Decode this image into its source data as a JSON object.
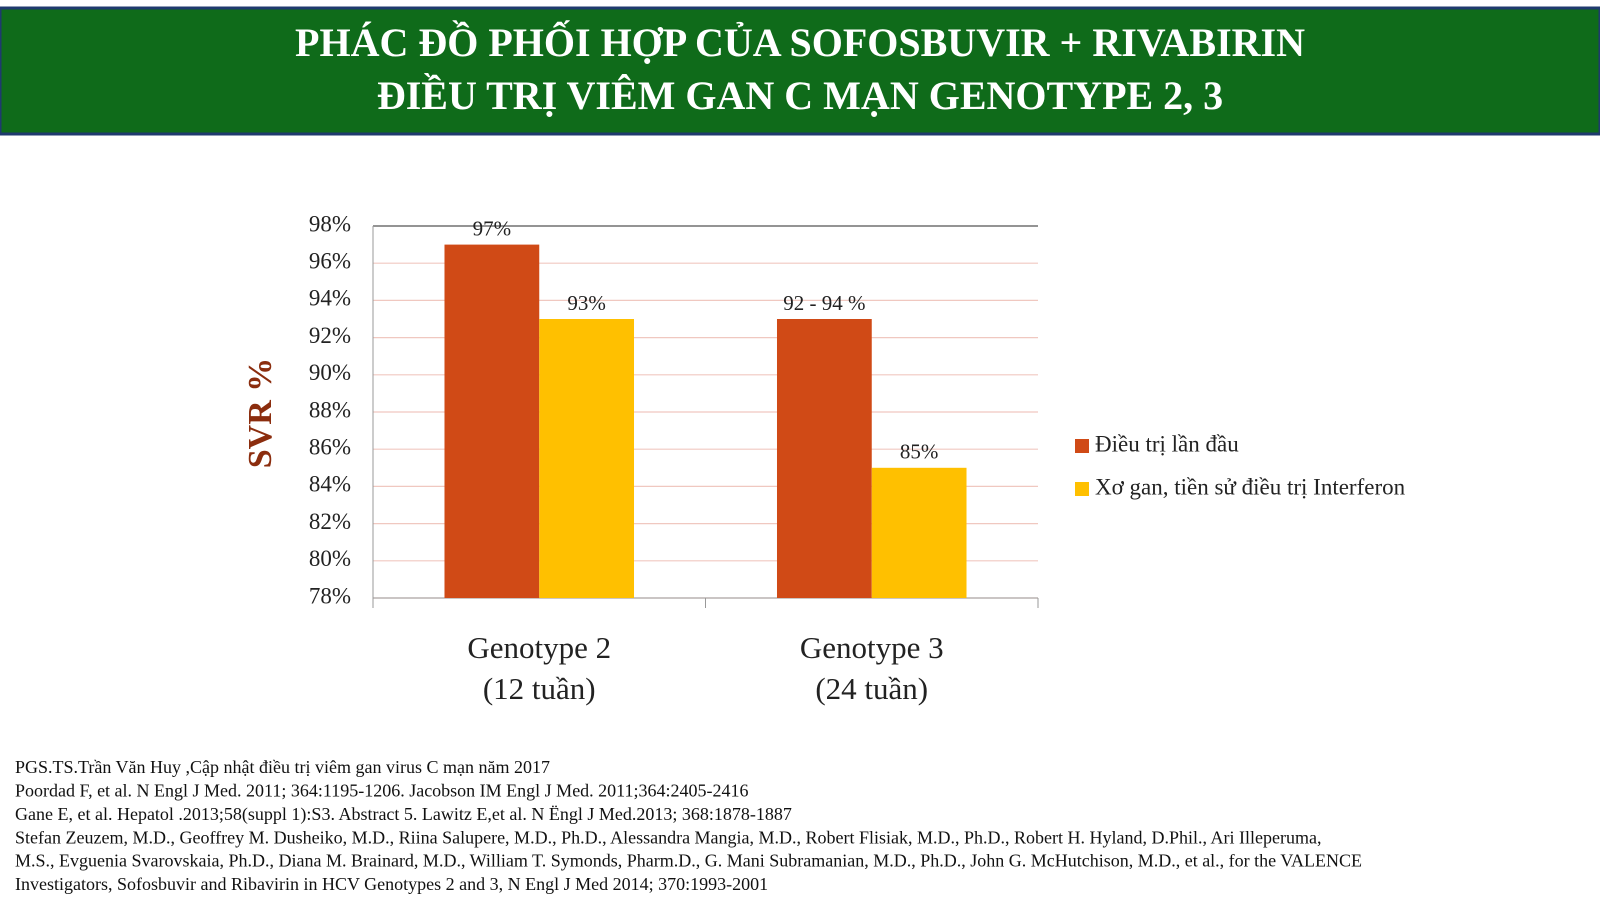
{
  "header": {
    "title": [
      "PHÁC ĐỒ PHỐI HỢP CỦA SOFOSBUVIR + RIVABIRIN",
      "ĐIỀU TRỊ VIÊM GAN C MẠN GENOTYPE 2, 3"
    ]
  },
  "chart_data": {
    "type": "bar",
    "y_label": "SVR %",
    "categories": [
      [
        "Genotype 2",
        "(12 tuần)"
      ],
      [
        "Genotype 3",
        "(24 tuần)"
      ]
    ],
    "series": [
      {
        "name": "Điều trị lần đầu",
        "color": "#d04a16",
        "values": [
          97,
          93
        ],
        "value_labels": [
          "97%",
          "92 - 94 %"
        ]
      },
      {
        "name": "Xơ gan, tiền sử điều trị Interferon",
        "color": "#ffc000",
        "values": [
          93,
          85
        ],
        "value_labels": [
          "93%",
          "85%"
        ]
      }
    ],
    "ylim": [
      78,
      98
    ],
    "yticks": [
      {
        "value": 78,
        "label": "78%"
      },
      {
        "value": 80,
        "label": "80%"
      },
      {
        "value": 82,
        "label": "82%"
      },
      {
        "value": 84,
        "label": "84%"
      },
      {
        "value": 86,
        "label": "86%"
      },
      {
        "value": 88,
        "label": "88%"
      },
      {
        "value": 90,
        "label": "90%"
      },
      {
        "value": 92,
        "label": "92%"
      },
      {
        "value": 94,
        "label": "94%"
      },
      {
        "value": 96,
        "label": "96%"
      },
      {
        "value": 98,
        "label": "98%"
      }
    ],
    "grid": true,
    "legend": "right"
  },
  "references": [
    "PGS.TS.Trần Văn Huy ,Cập nhật điều trị viêm gan virus C mạn năm 2017",
    "Poordad F, et al. N Engl J Med. 2011; 364:1195-1206. Jacobson IM Engl J Med. 2011;364:2405-2416",
    "Gane E, et al. Hepatol .2013;58(suppl 1):S3. Abstract 5. Lawitz E,et al. N Ëngl J Med.2013; 368:1878-1887",
    "Stefan Zeuzem, M.D., Geoffrey M. Dusheiko, M.D., Riina Salupere, M.D., Ph.D., Alessandra Mangia, M.D., Robert Flisiak, M.D., Ph.D., Robert H. Hyland, D.Phil., Ari Illeperuma,",
    "M.S., Evguenia Svarovskaia, Ph.D., Diana M. Brainard, M.D., William T. Symonds, Pharm.D., G. Mani Subramanian, M.D., Ph.D., John G. McHutchison, M.D., et al., for the VALENCE",
    "Investigators, Sofosbuvir and Ribavirin in HCV Genotypes 2 and 3, N Engl J Med 2014; 370:1993-2001"
  ]
}
